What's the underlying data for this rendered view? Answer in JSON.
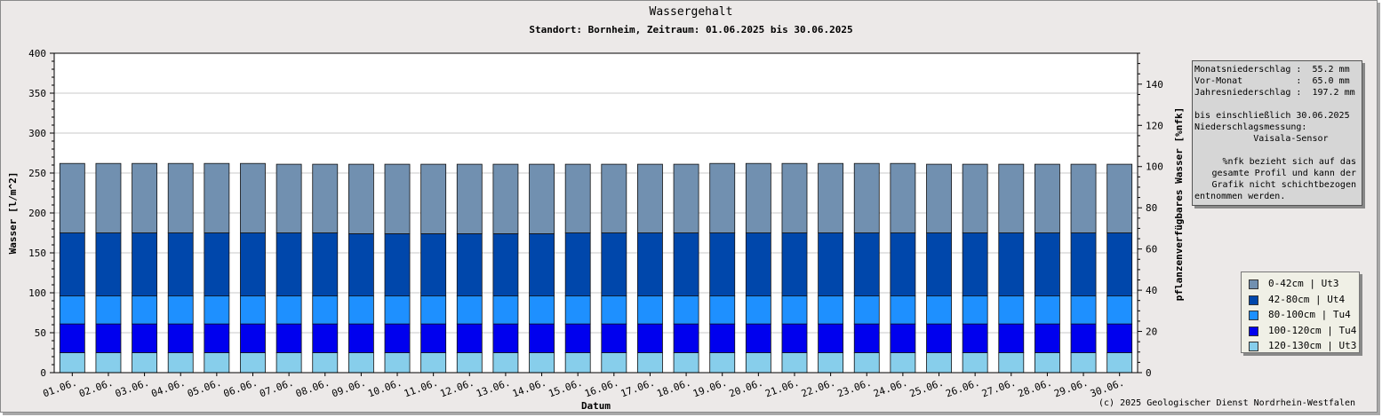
{
  "header": {
    "title": "Wassergehalt",
    "subtitle": "Standort: Bornheim, Zeitraum: 01.06.2025 bis 30.06.2025"
  },
  "infobox": {
    "lines": [
      "Monatsniederschlag :  55.2 mm",
      "Vor-Monat          :  65.0 mm",
      "Jahresniederschlag :  197.2 mm",
      "",
      "bis einschließlich 30.06.2025",
      "Niederschlagsmessung:",
      "           Vaisala-Sensor",
      "",
      "%nfk bezieht sich auf das",
      "gesamte Profil und kann der",
      "Grafik nicht schichtbezogen",
      "entnommen werden."
    ]
  },
  "copyright": "(c) 2025 Geologischer Dienst Nordrhein-Westfalen",
  "chart_data": {
    "type": "bar",
    "stacked": true,
    "xlabel": "Datum",
    "ylabel": "Wasser [l/m^2]",
    "y2label": "pflanzenverfügbares Wasser [%nfk]",
    "ylim": [
      0,
      400
    ],
    "y2lim": [
      0,
      155
    ],
    "yticks": [
      0,
      50,
      100,
      150,
      200,
      250,
      300,
      350,
      400
    ],
    "y2ticks": [
      0,
      20,
      40,
      60,
      80,
      100,
      120,
      140
    ],
    "grid": true,
    "legend_position": "right",
    "categories": [
      "01.06.",
      "02.06.",
      "03.06.",
      "04.06.",
      "05.06.",
      "06.06.",
      "07.06.",
      "08.06.",
      "09.06.",
      "10.06.",
      "11.06.",
      "12.06.",
      "13.06.",
      "14.06.",
      "15.06.",
      "16.06.",
      "17.06.",
      "18.06.",
      "19.06.",
      "20.06.",
      "21.06.",
      "22.06.",
      "23.06.",
      "24.06.",
      "25.06.",
      "26.06.",
      "27.06.",
      "28.06.",
      "29.06.",
      "30.06."
    ],
    "series": [
      {
        "name": "120-130cm | Ut3",
        "color": "#87ceeb",
        "values": [
          25,
          25,
          25,
          25,
          25,
          25,
          25,
          25,
          25,
          25,
          25,
          25,
          25,
          25,
          25,
          25,
          25,
          25,
          25,
          25,
          25,
          25,
          25,
          25,
          25,
          25,
          25,
          25,
          25,
          25
        ]
      },
      {
        "name": "100-120cm | Tu4",
        "color": "#0000ee",
        "values": [
          36,
          36,
          36,
          36,
          36,
          36,
          36,
          36,
          36,
          36,
          36,
          36,
          36,
          36,
          36,
          36,
          36,
          36,
          36,
          36,
          36,
          36,
          36,
          36,
          36,
          36,
          36,
          36,
          36,
          36
        ]
      },
      {
        "name": "80-100cm | Tu4",
        "color": "#1e90ff",
        "values": [
          35,
          35,
          35,
          35,
          35,
          35,
          35,
          35,
          35,
          35,
          35,
          35,
          35,
          35,
          35,
          35,
          35,
          35,
          35,
          35,
          35,
          35,
          35,
          35,
          35,
          35,
          35,
          35,
          35,
          35
        ]
      },
      {
        "name": "42-80cm | Ut4",
        "color": "#0047ab",
        "values": [
          79,
          79,
          79,
          79,
          79,
          79,
          79,
          79,
          78,
          78,
          78,
          78,
          78,
          78,
          79,
          79,
          79,
          79,
          79,
          79,
          79,
          79,
          79,
          79,
          79,
          79,
          79,
          79,
          79,
          79
        ]
      },
      {
        "name": "0-42cm | Ut3",
        "color": "#7190b0",
        "values": [
          87,
          87,
          87,
          87,
          87,
          87,
          86,
          86,
          87,
          87,
          87,
          87,
          87,
          87,
          86,
          86,
          86,
          86,
          87,
          87,
          87,
          87,
          87,
          87,
          86,
          86,
          86,
          86,
          86,
          86
        ]
      }
    ],
    "legend_order": [
      "0-42cm | Ut3",
      "42-80cm | Ut4",
      "80-100cm | Tu4",
      "100-120cm | Tu4",
      "120-130cm | Ut3"
    ]
  }
}
